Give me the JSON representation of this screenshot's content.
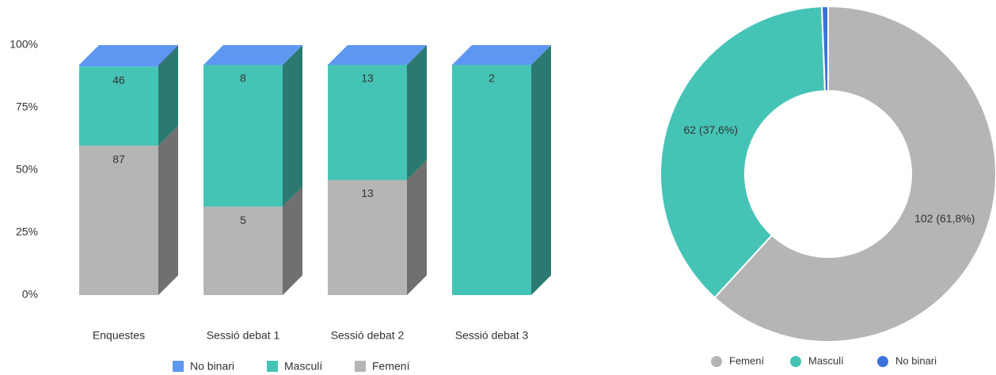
{
  "chart_data": [
    {
      "type": "bar",
      "stacking": "percent",
      "categories": [
        "Enquestes",
        "Sessió debat 1",
        "Sessió debat 2",
        "Sessió debat 3"
      ],
      "series": [
        {
          "name": "Femení",
          "color": "#b5b5b5",
          "values": [
            87,
            5,
            13,
            0
          ]
        },
        {
          "name": "Masculí",
          "color": "#45c4b6",
          "values": [
            46,
            8,
            13,
            2
          ]
        },
        {
          "name": "No binari",
          "color": "#5e97f2",
          "values": [
            1,
            0,
            0,
            0
          ]
        }
      ],
      "ylim": [
        0,
        100
      ],
      "yticks": [
        {
          "value": 0,
          "label": "0%"
        },
        {
          "value": 25,
          "label": "25%"
        },
        {
          "value": 50,
          "label": "50%"
        },
        {
          "value": 75,
          "label": "75%"
        },
        {
          "value": 100,
          "label": "100%"
        }
      ],
      "legend": "bottom"
    },
    {
      "type": "pie",
      "donut": true,
      "categories": [
        "Femení",
        "Masculí",
        "No binari"
      ],
      "values": [
        102,
        62,
        1
      ],
      "value_labels": [
        "102 (61,8%)",
        "62 (37,6%)",
        null
      ],
      "colors": [
        "#b5b5b5",
        "#45c4b6",
        "#3b72dc"
      ],
      "legend": "bottom"
    }
  ]
}
